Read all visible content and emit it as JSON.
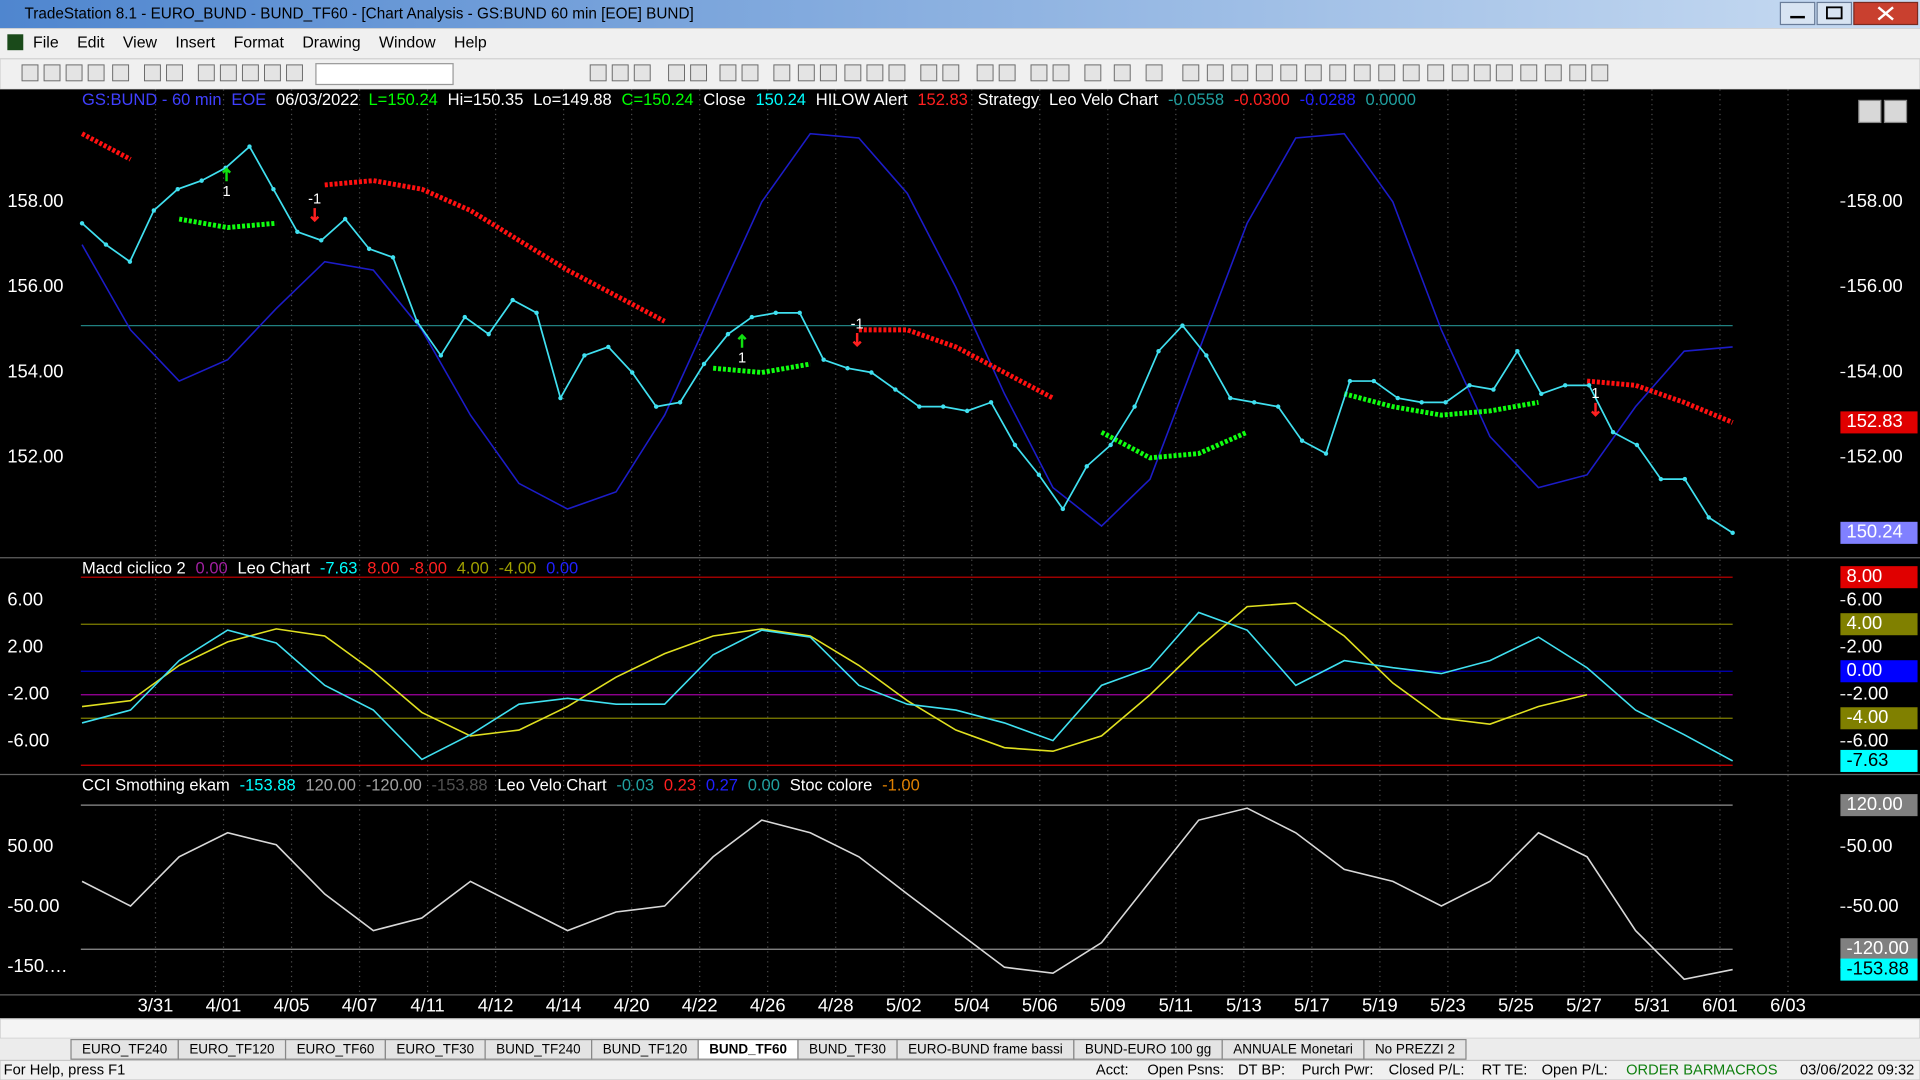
{
  "window": {
    "title": "TradeStation 8.1 - EURO_BUND - BUND_TF60 - [Chart Analysis - GS:BUND  60 min  [EOE] BUND]"
  },
  "menu": [
    "File",
    "Edit",
    "View",
    "Insert",
    "Format",
    "Drawing",
    "Window",
    "Help"
  ],
  "chart_data": [
    {
      "type": "line",
      "header": [
        {
          "text": "GS:BUND - 60 min",
          "color": "#4040ff"
        },
        {
          "text": "EOE",
          "color": "#4040ff"
        },
        {
          "text": "06/03/2022",
          "color": "#ffffff"
        },
        {
          "text": "L=150.24",
          "color": "#00ff00"
        },
        {
          "text": "Hi=150.35",
          "color": "#ffffff"
        },
        {
          "text": "Lo=149.88",
          "color": "#ffffff"
        },
        {
          "text": "C=150.24",
          "color": "#00ff00"
        },
        {
          "text": "Close",
          "color": "#ffffff"
        },
        {
          "text": "150.24",
          "color": "#00ffff"
        },
        {
          "text": "HILOW Alert",
          "color": "#ffffff"
        },
        {
          "text": "152.83",
          "color": "#ff2020"
        },
        {
          "text": "Strategy",
          "color": "#ffffff"
        },
        {
          "text": "Leo Velo Chart",
          "color": "#ffffff"
        },
        {
          "text": "-0.0558",
          "color": "#20a0a0"
        },
        {
          "text": "-0.0300",
          "color": "#ff2020"
        },
        {
          "text": "-0.0288",
          "color": "#2020ff"
        },
        {
          "text": "0.0000",
          "color": "#20a0a0"
        }
      ],
      "ylim": [
        149.67,
        160.64
      ],
      "yticks": [
        {
          "value": 152,
          "label": "152.00"
        },
        {
          "value": 154,
          "label": "154.00"
        },
        {
          "value": 156,
          "label": "156.00"
        },
        {
          "value": 158,
          "label": "158.00"
        }
      ],
      "hlines": [
        {
          "value": 155.1,
          "color": "#208080"
        }
      ],
      "series": [
        {
          "color": "#1c1cc8",
          "style": "solid",
          "values": [
            157.0,
            155.0,
            153.8,
            154.3,
            155.5,
            156.6,
            156.4,
            155.0,
            153.0,
            151.4,
            150.8,
            151.2,
            153.0,
            155.5,
            158.0,
            159.6,
            159.5,
            158.2,
            156.0,
            153.5,
            151.3,
            150.4,
            151.5,
            154.5,
            157.5,
            159.5,
            159.6,
            158.0,
            155.0,
            152.5,
            151.3,
            151.6,
            153.2,
            154.5,
            154.6
          ]
        },
        {
          "color": "#ff1010",
          "style": "dotted",
          "values": [
            159.6,
            159.0,
            null,
            null,
            null,
            158.4,
            158.5,
            158.3,
            157.8,
            157.1,
            156.4,
            155.8,
            155.2,
            null,
            null,
            null,
            155.0,
            155.0,
            154.6,
            154.0,
            153.4,
            null,
            null,
            null,
            null,
            154.0,
            null,
            null,
            null,
            null,
            null,
            153.8,
            153.7,
            153.3,
            152.83
          ]
        },
        {
          "color": "#10ff10",
          "style": "dotted",
          "values": [
            null,
            null,
            157.6,
            157.4,
            157.5,
            null,
            null,
            null,
            null,
            null,
            null,
            null,
            null,
            154.1,
            154.0,
            154.2,
            null,
            null,
            null,
            null,
            null,
            152.6,
            152.0,
            152.1,
            152.6,
            null,
            153.5,
            153.2,
            153.0,
            153.1,
            153.3,
            null,
            null,
            null,
            null
          ]
        },
        {
          "color": "#40e0f0",
          "style": "dots",
          "values": [
            157.5,
            157.0,
            156.6,
            157.8,
            158.3,
            158.5,
            158.8,
            159.3,
            158.3,
            157.3,
            157.1,
            157.6,
            156.9,
            156.7,
            155.2,
            154.4,
            155.3,
            154.9,
            155.7,
            155.4,
            153.4,
            154.4,
            154.6,
            154.0,
            153.2,
            153.3,
            154.2,
            154.9,
            155.3,
            155.4,
            155.4,
            154.3,
            154.1,
            154.0,
            153.6,
            153.2,
            153.2,
            153.1,
            153.3,
            152.3,
            151.6,
            150.8,
            151.8,
            152.3,
            153.2,
            154.5,
            155.1,
            154.4,
            153.4,
            153.3,
            153.2,
            152.4,
            152.1,
            153.8,
            153.8,
            153.4,
            153.3,
            153.3,
            153.7,
            153.6,
            154.5,
            153.5,
            153.7,
            153.7,
            152.6,
            152.3,
            151.5,
            151.5,
            150.6,
            150.24
          ]
        }
      ],
      "annotations": [
        "1",
        "-1",
        "1",
        "-1",
        "1"
      ],
      "markers": [
        {
          "value": 152.83,
          "label": "152.83",
          "color": "#e00000"
        },
        {
          "value": 150.24,
          "label": "150.24",
          "color": "#8080ff"
        }
      ]
    },
    {
      "type": "line",
      "header": [
        {
          "text": "Macd ciclico 2",
          "color": "#ffffff"
        },
        {
          "text": "0.00",
          "color": "#a020a0"
        },
        {
          "text": "Leo Chart",
          "color": "#ffffff"
        },
        {
          "text": "-7.63",
          "color": "#00ffff"
        },
        {
          "text": "8.00",
          "color": "#ff2020"
        },
        {
          "text": "-8.00",
          "color": "#ff2020"
        },
        {
          "text": "4.00",
          "color": "#a0a000"
        },
        {
          "text": "-4.00",
          "color": "#a0a000"
        },
        {
          "text": "0.00",
          "color": "#2020ff"
        }
      ],
      "ylim": [
        -8.73,
        9.6
      ],
      "yticks": [
        {
          "value": -6,
          "label": "-6.00"
        },
        {
          "value": -2,
          "label": "-2.00"
        },
        {
          "value": 2,
          "label": "2.00"
        },
        {
          "value": 6,
          "label": "6.00"
        }
      ],
      "hlines": [
        {
          "value": 8,
          "color": "#d00000"
        },
        {
          "value": 4,
          "color": "#808000"
        },
        {
          "value": 0,
          "color": "#0000c0"
        },
        {
          "value": -2,
          "color": "#a000a0"
        },
        {
          "value": -4,
          "color": "#808000"
        },
        {
          "value": -8,
          "color": "#d00000"
        }
      ],
      "series": [
        {
          "color": "#e0e020",
          "style": "solid",
          "values": [
            -3.0,
            -2.5,
            0.5,
            2.5,
            3.6,
            3.0,
            0.0,
            -3.5,
            -5.5,
            -5.0,
            -3.0,
            -0.5,
            1.5,
            3.0,
            3.6,
            3.0,
            0.5,
            -2.5,
            -5.0,
            -6.5,
            -6.8,
            -5.5,
            -2.0,
            2.0,
            5.5,
            5.8,
            3.0,
            -1.0,
            -4.0,
            -4.5,
            -3.0,
            -2.0,
            null,
            null,
            null
          ]
        },
        {
          "color": "#40e0f0",
          "style": "solid",
          "values": [
            -4.4,
            -3.3,
            0.9,
            3.5,
            2.4,
            -1.2,
            -3.3,
            -7.5,
            -5.4,
            -2.8,
            -2.3,
            -2.8,
            -2.8,
            1.4,
            3.5,
            2.9,
            -1.2,
            -2.8,
            -3.3,
            -4.4,
            -5.9,
            -1.2,
            0.3,
            5.0,
            3.5,
            -1.2,
            0.9,
            0.3,
            -0.2,
            0.9,
            2.9,
            0.3,
            -3.3,
            -5.4,
            -7.63
          ]
        }
      ],
      "markers": [
        {
          "value": 8,
          "label": "8.00",
          "color": "#e00000"
        },
        {
          "value": 4,
          "label": "4.00",
          "color": "#808000"
        },
        {
          "value": 0,
          "label": "0.00",
          "color": "#0000ff"
        },
        {
          "value": -4,
          "label": "-4.00",
          "color": "#808000"
        },
        {
          "value": -7.63,
          "label": "-7.63",
          "color": "#00ffff"
        }
      ]
    },
    {
      "type": "line",
      "header": [
        {
          "text": "CCI Smothing ekam",
          "color": "#ffffff"
        },
        {
          "text": "-153.88",
          "color": "#00ffff"
        },
        {
          "text": "120.00",
          "color": "#a0a0a0"
        },
        {
          "text": "-120.00",
          "color": "#a0a0a0"
        },
        {
          "text": "-153.88",
          "color": "#505050"
        },
        {
          "text": "Leo Velo Chart",
          "color": "#ffffff"
        },
        {
          "text": "-0.03",
          "color": "#20a0a0"
        },
        {
          "text": "0.23",
          "color": "#ff2020"
        },
        {
          "text": "0.27",
          "color": "#2020ff"
        },
        {
          "text": "0.00",
          "color": "#20a0a0"
        },
        {
          "text": "Stoc colore",
          "color": "#ffffff"
        },
        {
          "text": "-1.00",
          "color": "#e08000"
        }
      ],
      "ylim": [
        -195,
        170
      ],
      "yticks": [
        {
          "value": -150,
          "label": "-150.…"
        },
        {
          "value": -50,
          "label": "-50.00"
        },
        {
          "value": 50,
          "label": "50.00"
        }
      ],
      "hlines": [
        {
          "value": 120,
          "color": "#909090"
        },
        {
          "value": -120,
          "color": "#909090"
        }
      ],
      "series": [
        {
          "color": "#d8d8d8",
          "style": "solid",
          "values": [
            -7,
            -48,
            34,
            74,
            54,
            -28,
            -89,
            -68,
            -7,
            -48,
            -89,
            -58,
            -48,
            34,
            95,
            74,
            34,
            -28,
            -89,
            -150,
            -160,
            -109,
            -7,
            95,
            115,
            74,
            13,
            -7,
            -48,
            -7,
            74,
            34,
            -89,
            -170,
            -153.88
          ]
        }
      ],
      "markers": [
        {
          "value": 120,
          "label": "120.00",
          "color": "#808080"
        },
        {
          "value": -120,
          "label": "-120.00",
          "color": "#808080"
        },
        {
          "value": -153.88,
          "label": "-153.88",
          "color": "#00ffff"
        }
      ]
    }
  ],
  "time_axis": {
    "labels": [
      "3/31",
      "4/01",
      "4/05",
      "4/07",
      "4/11",
      "4/12",
      "4/14",
      "4/20",
      "4/22",
      "4/26",
      "4/28",
      "5/02",
      "5/04",
      "5/06",
      "5/09",
      "5/11",
      "5/13",
      "5/17",
      "5/19",
      "5/23",
      "5/25",
      "5/27",
      "5/31",
      "6/01",
      "6/03"
    ]
  },
  "tabs": [
    "EURO_TF240",
    "EURO_TF120",
    "EURO_TF60",
    "EURO_TF30",
    "BUND_TF240",
    "BUND_TF120",
    "BUND_TF60",
    "BUND_TF30",
    "EURO-BUND frame bassi",
    "BUND-EURO 100 gg",
    "ANNUALE Monetari",
    "No PREZZI 2"
  ],
  "active_tab": 6,
  "status": [
    "For Help, press F1",
    "Acct:",
    "Open Psns:",
    "DT BP:",
    "Purch Pwr:",
    "Closed P/L:",
    "RT TE:",
    "Open P/L:",
    "ORDER BAR",
    "MACROS",
    "03/06/2022 09:32"
  ]
}
